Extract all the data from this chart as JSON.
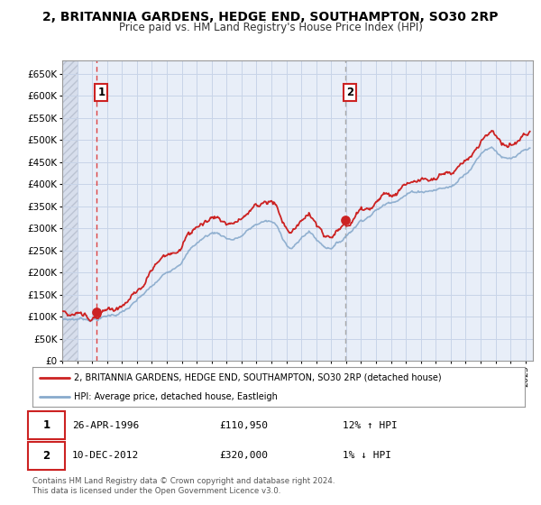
{
  "title": "2, BRITANNIA GARDENS, HEDGE END, SOUTHAMPTON, SO30 2RP",
  "subtitle": "Price paid vs. HM Land Registry's House Price Index (HPI)",
  "legend_label_red": "2, BRITANNIA GARDENS, HEDGE END, SOUTHAMPTON, SO30 2RP (detached house)",
  "legend_label_blue": "HPI: Average price, detached house, Eastleigh",
  "sale1_date": "26-APR-1996",
  "sale1_price": "£110,950",
  "sale1_hpi": "12% ↑ HPI",
  "sale1_year": 1996.32,
  "sale1_value": 110950,
  "sale2_date": "10-DEC-2012",
  "sale2_price": "£320,000",
  "sale2_hpi": "1% ↓ HPI",
  "sale2_year": 2012.94,
  "sale2_value": 320000,
  "footer": "Contains HM Land Registry data © Crown copyright and database right 2024.\nThis data is licensed under the Open Government Licence v3.0.",
  "xlim": [
    1994.0,
    2025.5
  ],
  "ylim": [
    0,
    680000
  ],
  "yticks": [
    0,
    50000,
    100000,
    150000,
    200000,
    250000,
    300000,
    350000,
    400000,
    450000,
    500000,
    550000,
    600000,
    650000
  ],
  "xticks": [
    1994,
    1995,
    1996,
    1997,
    1998,
    1999,
    2000,
    2001,
    2002,
    2003,
    2004,
    2005,
    2006,
    2007,
    2008,
    2009,
    2010,
    2011,
    2012,
    2013,
    2014,
    2015,
    2016,
    2017,
    2018,
    2019,
    2020,
    2021,
    2022,
    2023,
    2024,
    2025
  ],
  "grid_color": "#c8d4e8",
  "plot_bg": "#e8eef8",
  "hatch_bg": "#d8dde8",
  "red_color": "#cc2222",
  "blue_color": "#88aacc",
  "marker_color": "#cc2222",
  "vline1_color": "#dd4444",
  "vline2_color": "#aaaaaa",
  "box_color": "#cc2222",
  "title_fontsize": 10,
  "subtitle_fontsize": 8.5
}
